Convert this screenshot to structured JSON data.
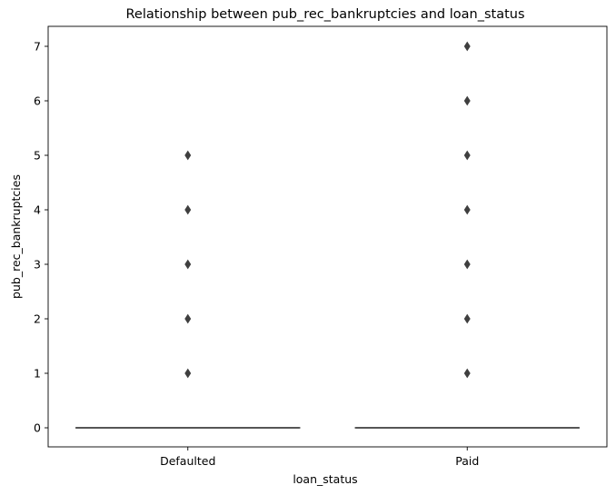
{
  "chart_data": {
    "type": "box",
    "title": "Relationship between pub_rec_bankruptcies and loan_status",
    "xlabel": "loan_status",
    "ylabel": "pub_rec_bankruptcies",
    "categories": [
      "Defaulted",
      "Paid"
    ],
    "ylim": [
      -0.35,
      7.35
    ],
    "yticks": [
      0,
      1,
      2,
      3,
      4,
      5,
      6,
      7
    ],
    "grid": false,
    "boxes": [
      {
        "category": "Defaulted",
        "min": 0,
        "q1": 0,
        "median": 0,
        "q3": 0,
        "max": 0,
        "outliers": [
          1,
          2,
          3,
          4,
          5
        ]
      },
      {
        "category": "Paid",
        "min": 0,
        "q1": 0,
        "median": 0,
        "q3": 0,
        "max": 0,
        "outliers": [
          1,
          2,
          3,
          4,
          5,
          6,
          7
        ]
      }
    ],
    "colors": {
      "box_line": "#3f3f3f",
      "outlier": "#3f3f3f",
      "axis": "#000000"
    }
  }
}
